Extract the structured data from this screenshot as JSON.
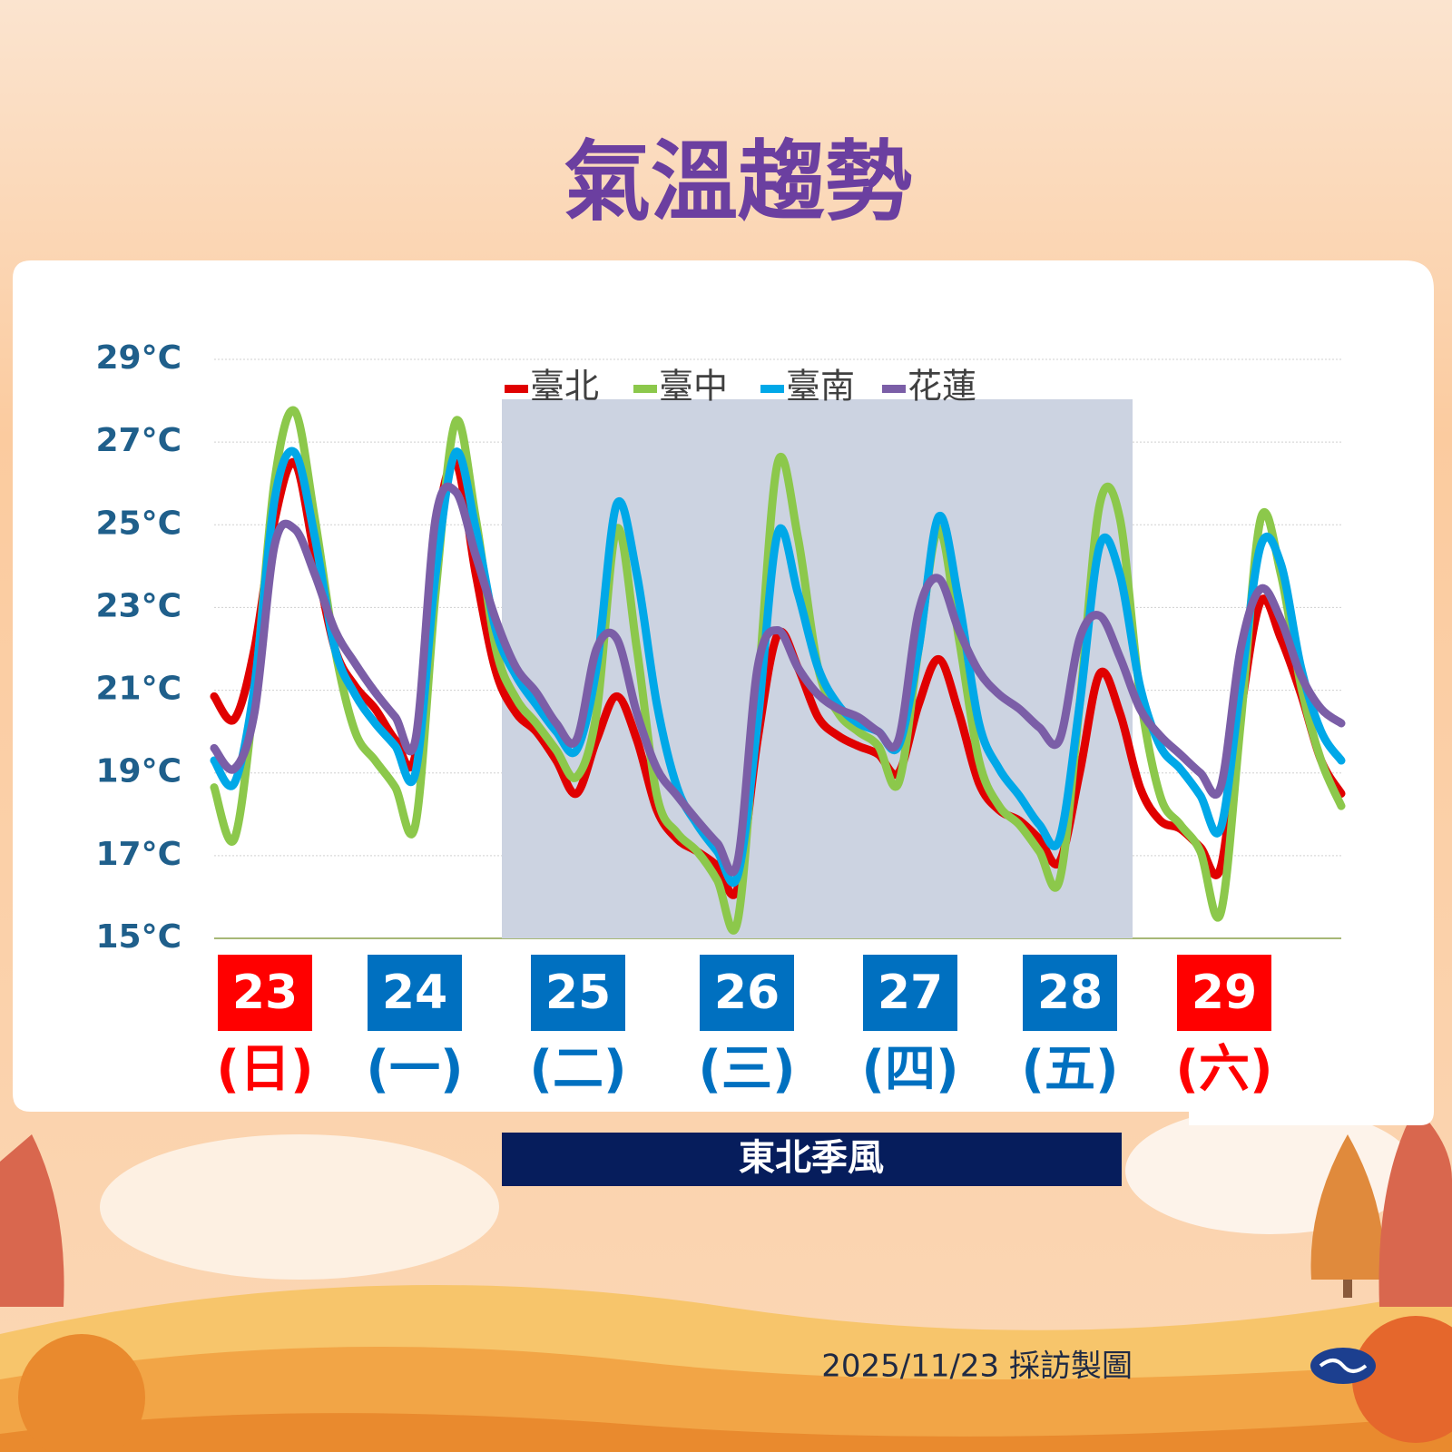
{
  "chart_data": {
    "type": "line",
    "title": "氣溫趨勢",
    "ylim": [
      15,
      29
    ],
    "yticks": [
      {
        "value": 15,
        "label": "15°C"
      },
      {
        "value": 17,
        "label": "17°C"
      },
      {
        "value": 19,
        "label": "19°C"
      },
      {
        "value": 21,
        "label": "21°C"
      },
      {
        "value": 23,
        "label": "23°C"
      },
      {
        "value": 25,
        "label": "25°C"
      },
      {
        "value": 27,
        "label": "27°C"
      },
      {
        "value": 29,
        "label": "29°C"
      }
    ],
    "grid": true,
    "legend": "top",
    "days": [
      {
        "date": "23",
        "weekday": "(日)",
        "color": "#ff0000"
      },
      {
        "date": "24",
        "weekday": "(一)",
        "color": "#0070c0"
      },
      {
        "date": "25",
        "weekday": "(二)",
        "color": "#0070c0"
      },
      {
        "date": "26",
        "weekday": "(三)",
        "color": "#0070c0"
      },
      {
        "date": "27",
        "weekday": "(四)",
        "color": "#0070c0"
      },
      {
        "date": "28",
        "weekday": "(五)",
        "color": "#0070c0"
      },
      {
        "date": "29",
        "weekday": "(六)",
        "color": "#ff0000"
      }
    ],
    "annotation": "東北季風",
    "series": [
      {
        "name": "臺北",
        "color": "#e00000",
        "values": [
          20.85,
          20.3,
          22.0,
          25.1,
          26.5,
          24.25,
          22.0,
          21.1,
          20.55,
          19.8,
          19.45,
          24.7,
          26.5,
          23.8,
          21.45,
          20.45,
          20.0,
          19.3,
          18.5,
          19.8,
          20.85,
          19.8,
          18.1,
          17.4,
          17.1,
          16.75,
          16.2,
          19.8,
          22.35,
          21.55,
          20.35,
          19.9,
          19.65,
          19.45,
          19.0,
          20.65,
          21.75,
          20.45,
          18.75,
          18.1,
          17.85,
          17.4,
          16.85,
          19.0,
          21.4,
          20.45,
          18.65,
          17.85,
          17.65,
          17.2,
          16.7,
          20.45,
          23.15,
          22.25,
          20.9,
          19.3,
          18.5
        ]
      },
      {
        "name": "臺中",
        "color": "#8cc84b",
        "values": [
          18.65,
          17.4,
          20.9,
          26.05,
          27.75,
          25.15,
          22.0,
          20.0,
          19.3,
          18.65,
          17.75,
          23.35,
          27.5,
          25.15,
          22.0,
          20.8,
          20.2,
          19.55,
          18.9,
          20.45,
          24.9,
          22.0,
          18.45,
          17.55,
          17.1,
          16.4,
          15.4,
          20.9,
          26.5,
          24.7,
          21.55,
          20.45,
          20.0,
          19.65,
          18.75,
          22.0,
          24.9,
          22.25,
          19.3,
          18.2,
          17.75,
          17.1,
          16.4,
          20.65,
          25.5,
          25.15,
          20.9,
          18.45,
          17.75,
          17.1,
          15.6,
          20.2,
          25.15,
          23.8,
          21.1,
          19.3,
          18.2
        ]
      },
      {
        "name": "臺南",
        "color": "#00a8e8",
        "values": [
          19.3,
          18.75,
          21.1,
          25.6,
          26.75,
          24.7,
          22.0,
          20.9,
          20.2,
          19.65,
          19.0,
          23.8,
          26.75,
          24.9,
          22.45,
          21.35,
          20.65,
          20.0,
          19.55,
          21.55,
          25.5,
          23.8,
          20.65,
          18.65,
          17.75,
          17.1,
          16.5,
          20.2,
          24.8,
          23.35,
          21.55,
          20.65,
          20.2,
          20.0,
          19.65,
          22.0,
          25.2,
          23.15,
          20.2,
          19.1,
          18.45,
          17.75,
          17.4,
          20.65,
          24.5,
          23.8,
          21.1,
          19.65,
          19.1,
          18.45,
          17.65,
          21.1,
          24.5,
          24.05,
          21.55,
          20.0,
          19.3
        ]
      },
      {
        "name": "花蓮",
        "color": "#7b5ea7",
        "values": [
          19.6,
          19.1,
          20.45,
          24.5,
          24.9,
          23.8,
          22.45,
          21.65,
          20.95,
          20.35,
          19.8,
          25.15,
          25.8,
          24.25,
          22.7,
          21.55,
          20.95,
          20.2,
          19.8,
          22.0,
          22.25,
          20.45,
          19.1,
          18.45,
          17.85,
          17.3,
          16.85,
          21.55,
          22.45,
          21.55,
          20.9,
          20.55,
          20.35,
          20.0,
          19.8,
          22.9,
          23.7,
          22.45,
          21.45,
          20.9,
          20.55,
          20.1,
          19.8,
          22.25,
          22.8,
          21.8,
          20.55,
          19.9,
          19.45,
          19.0,
          18.65,
          22.0,
          23.45,
          22.7,
          21.35,
          20.55,
          20.2
        ]
      }
    ]
  },
  "footer": {
    "credit": "2025/11/23 採訪製圖"
  }
}
